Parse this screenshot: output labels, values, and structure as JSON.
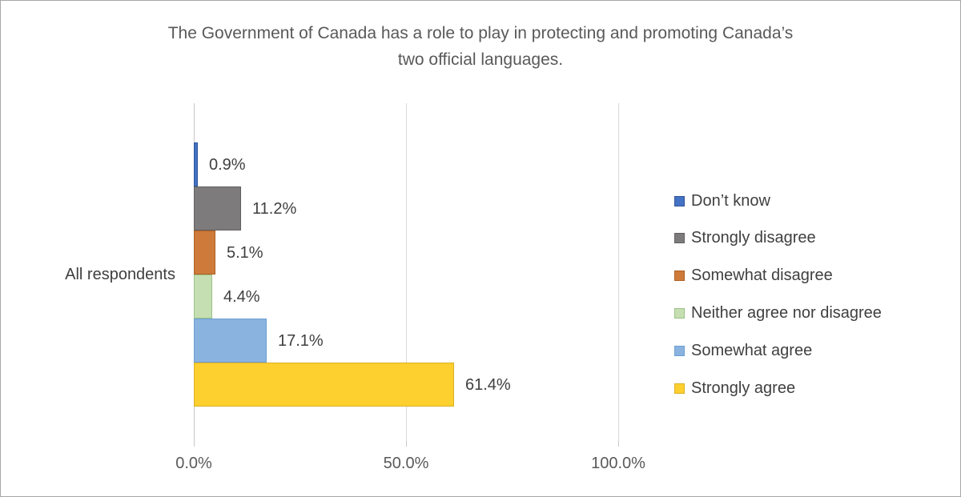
{
  "chart_data": {
    "type": "bar",
    "orientation": "horizontal",
    "title": "The Government of Canada has a role to play in protecting and promoting Canada’s two official languages.",
    "title_lines": [
      "The Government of Canada has a role to play in protecting and promoting Canada’s",
      "two official languages."
    ],
    "categories": [
      "All respondents"
    ],
    "series": [
      {
        "name": "Don’t know",
        "value": 0.9,
        "label": "0.9%",
        "fill": "#4472C4",
        "border": "#2F5597"
      },
      {
        "name": "Strongly disagree",
        "value": 11.2,
        "label": "11.2%",
        "fill": "#7D7B7B",
        "border": "#636060"
      },
      {
        "name": "Somewhat disagree",
        "value": 5.1,
        "label": "5.1%",
        "fill": "#CE7A3B",
        "border": "#AE5F24"
      },
      {
        "name": "Neither agree nor disagree",
        "value": 4.4,
        "label": "4.4%",
        "fill": "#C5DFB2",
        "border": "#9BC186"
      },
      {
        "name": "Somewhat agree",
        "value": 17.1,
        "label": "17.1%",
        "fill": "#8AB3DF",
        "border": "#6E9FD4"
      },
      {
        "name": "Strongly agree",
        "value": 61.4,
        "label": "61.4%",
        "fill": "#FDCF2F",
        "border": "#DBB026"
      }
    ],
    "x_axis": {
      "min": 0,
      "max": 100,
      "ticks": [
        {
          "label": "0.0%",
          "value": 0
        },
        {
          "label": "50.0%",
          "value": 50
        },
        {
          "label": "100.0%",
          "value": 100
        }
      ]
    },
    "legend_position": "right",
    "grid": true,
    "colors": {
      "background": "#FFFFFF",
      "frame_border": "#A6A6A6",
      "gridline": "#D9D9D9",
      "axis_line": "#C8C8C8",
      "title_text": "#595959",
      "axis_text": "#595959",
      "label_text": "#3F3F3F"
    }
  }
}
